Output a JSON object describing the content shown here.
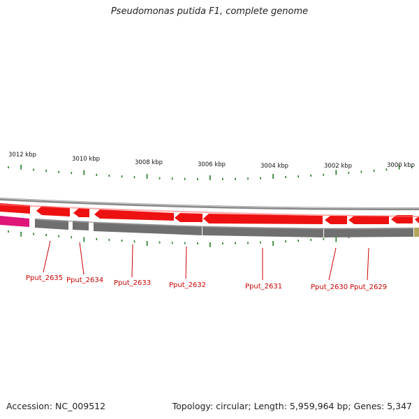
{
  "title": "Pseudomonas putida F1, complete genome",
  "footer": {
    "accession": "Accession: NC_009512",
    "summary": "Topology: circular; Length: 5,959,964 bp; Genes: 5,347"
  },
  "colors": {
    "gene_forward": "#ee1111",
    "gene_reverse": "#ee1111",
    "pink_feature": "#e0157a",
    "olive_feature": "#b3a55a",
    "backbone": "#8a8a8a",
    "tick": "#1f7a1f",
    "label": "#cc0000"
  },
  "scale_labels": [
    {
      "label": "3012 kbp",
      "kb": 3012
    },
    {
      "label": "3010 kbp",
      "kb": 3010
    },
    {
      "label": "3008 kbp",
      "kb": 3008
    },
    {
      "label": "3006 kbp",
      "kb": 3006
    },
    {
      "label": "3004 kbp",
      "kb": 3004
    },
    {
      "label": "3002 kbp",
      "kb": 3002
    },
    {
      "label": "3000 kbp",
      "kb": 3000
    }
  ],
  "genes": [
    {
      "name": "Pput_2635"
    },
    {
      "name": "Pput_2634"
    },
    {
      "name": "Pput_2633"
    },
    {
      "name": "Pput_2632"
    },
    {
      "name": "Pput_2631"
    },
    {
      "name": "Pput_2630"
    },
    {
      "name": "Pput_2629"
    }
  ]
}
